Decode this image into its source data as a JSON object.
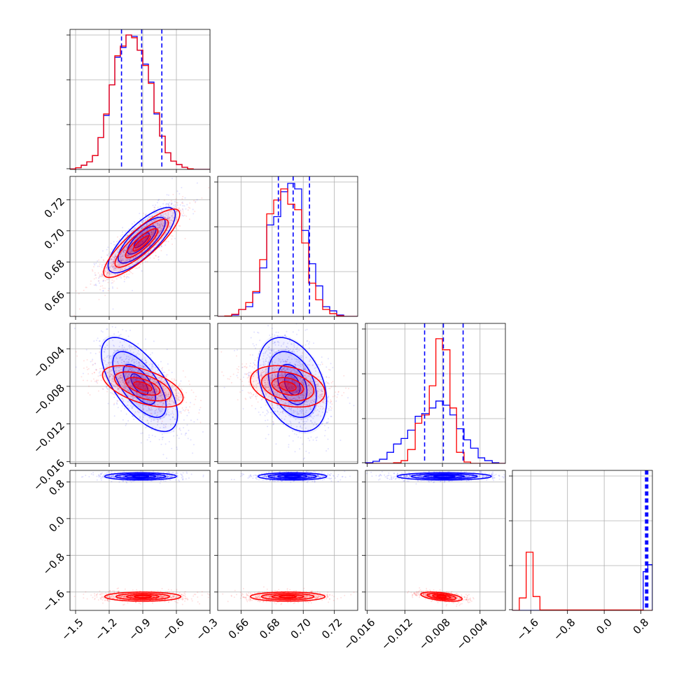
{
  "colors": {
    "series_a": "#0000ff",
    "series_b": "#ff0000",
    "grid": "#b0b0b0",
    "axis": "#000000"
  },
  "chart_data": {
    "type": "corner",
    "parameters": 4,
    "series": [
      {
        "name": "",
        "color": "#0000ff"
      },
      {
        "name": "",
        "color": "#ff0000"
      }
    ],
    "axes": [
      {
        "range": [
          -1.55,
          -0.3
        ],
        "ticks": [
          -1.5,
          -1.2,
          -0.9,
          -0.6,
          -0.3
        ],
        "tick_labels": [
          "−1.5",
          "−1.2",
          "−0.9",
          "−0.6",
          "−0.3"
        ]
      },
      {
        "range": [
          0.645,
          0.735
        ],
        "ticks": [
          0.66,
          0.68,
          0.7,
          0.72
        ],
        "tick_labels": [
          "0.66",
          "0.68",
          "0.70",
          "0.72"
        ]
      },
      {
        "range": [
          -0.0162,
          -0.0013
        ],
        "ticks": [
          -0.016,
          -0.012,
          -0.008,
          -0.004
        ],
        "tick_labels": [
          "−0.016",
          "−0.012",
          "−0.008",
          "−0.004"
        ]
      },
      {
        "range": [
          -2.0,
          1.05
        ],
        "ticks": [
          -1.6,
          -0.8,
          0.0,
          0.8
        ],
        "tick_labels": [
          "−1.6",
          "−0.8",
          "0.0",
          "0.8"
        ]
      }
    ],
    "quantiles": [
      {
        "blue": [
          -1.09,
          -0.91,
          -0.73
        ]
      },
      {
        "blue": [
          0.684,
          0.6935,
          0.704
        ]
      },
      {
        "blue": [
          -0.0099,
          -0.0079,
          -0.0058
        ]
      },
      {
        "blue": [
          0.9,
          0.925,
          0.95
        ]
      }
    ],
    "histograms": [
      {
        "bins": [
          -1.55,
          -1.5,
          -1.45,
          -1.4,
          -1.35,
          -1.3,
          -1.25,
          -1.2,
          -1.15,
          -1.1,
          -1.05,
          -1.0,
          -0.95,
          -0.9,
          -0.85,
          -0.8,
          -0.75,
          -0.7,
          -0.65,
          -0.6,
          -0.55,
          -0.5,
          -0.45,
          -0.4,
          -0.35,
          -0.3
        ],
        "blue": [
          0.003,
          0.012,
          0.03,
          0.055,
          0.1,
          0.23,
          0.39,
          0.61,
          0.81,
          0.88,
          0.97,
          0.96,
          0.86,
          0.76,
          0.63,
          0.4,
          0.24,
          0.12,
          0.06,
          0.035,
          0.015,
          0.004,
          0.0,
          0.0,
          0.0
        ],
        "red": [
          0.003,
          0.012,
          0.03,
          0.055,
          0.1,
          0.23,
          0.4,
          0.61,
          0.82,
          0.89,
          0.97,
          0.95,
          0.86,
          0.75,
          0.62,
          0.41,
          0.24,
          0.12,
          0.06,
          0.035,
          0.015,
          0.004,
          0.0,
          0.0,
          0.0
        ]
      },
      {
        "bins": [
          0.645,
          0.6495,
          0.654,
          0.6585,
          0.663,
          0.6675,
          0.672,
          0.6765,
          0.681,
          0.6855,
          0.69,
          0.6945,
          0.699,
          0.7035,
          0.708,
          0.7125,
          0.717,
          0.7215,
          0.726,
          0.7305,
          0.735
        ],
        "blue": [
          0.0,
          0.0,
          0.01,
          0.05,
          0.07,
          0.17,
          0.35,
          0.66,
          0.72,
          0.9,
          0.96,
          0.92,
          0.62,
          0.38,
          0.22,
          0.07,
          0.04,
          0.01,
          0.0,
          0.0
        ],
        "red": [
          0.0,
          0.003,
          0.015,
          0.05,
          0.1,
          0.18,
          0.41,
          0.74,
          0.84,
          0.92,
          0.81,
          0.77,
          0.53,
          0.24,
          0.12,
          0.05,
          0.02,
          0.005,
          0.0,
          0.0
        ]
      },
      {
        "bins": [
          -0.0162,
          -0.0154,
          -0.0147,
          -0.0139,
          -0.0132,
          -0.0124,
          -0.0117,
          -0.0109,
          -0.0102,
          -0.0094,
          -0.0087,
          -0.008,
          -0.0072,
          -0.0065,
          -0.0057,
          -0.005,
          -0.0042,
          -0.0035,
          -0.0027,
          -0.002,
          -0.0013
        ],
        "blue": [
          0.005,
          0.015,
          0.03,
          0.08,
          0.14,
          0.18,
          0.24,
          0.34,
          0.36,
          0.4,
          0.45,
          0.42,
          0.35,
          0.25,
          0.17,
          0.11,
          0.04,
          0.02,
          0.005,
          0.0
        ],
        "red": [
          0.0,
          0.0,
          0.0,
          0.0,
          0.005,
          0.02,
          0.1,
          0.29,
          0.35,
          0.56,
          0.9,
          0.82,
          0.4,
          0.08,
          0.01,
          0.0,
          0.0,
          0.0,
          0.0,
          0.0
        ]
      },
      {
        "bins": [
          -2.0,
          -1.85,
          -1.7,
          -1.55,
          -1.4,
          -1.25,
          -1.1,
          -0.95,
          -0.8,
          -0.65,
          -0.5,
          -0.35,
          -0.2,
          -0.05,
          0.1,
          0.25,
          0.4,
          0.55,
          0.7,
          0.85,
          0.95,
          1.05
        ],
        "blue": [
          0,
          0,
          0,
          0,
          0,
          0,
          0,
          0,
          0,
          0,
          0,
          0,
          0,
          0,
          0,
          0,
          0,
          0,
          0,
          0.28,
          0.33
        ],
        "red": [
          0.0,
          0.09,
          0.42,
          0.1,
          0.003,
          0.003,
          0.003,
          0.003,
          0.003,
          0.003,
          0.003,
          0.003,
          0.003,
          0.003,
          0.003,
          0.003,
          0.003,
          0.003,
          0.003,
          0.0,
          0.0
        ]
      }
    ],
    "pair_distributions": [
      {
        "row": 1,
        "col": 0,
        "blue": {
          "mean": [
            -0.91,
            0.694
          ],
          "sd": [
            0.15,
            0.0105
          ],
          "corr": 0.78
        },
        "red": {
          "mean": [
            -0.91,
            0.692
          ],
          "sd": [
            0.17,
            0.011
          ],
          "corr": 0.85
        }
      },
      {
        "row": 2,
        "col": 0,
        "blue": {
          "mean": [
            -0.93,
            -0.0078
          ],
          "sd": [
            0.17,
            0.0025
          ],
          "corr": -0.65
        },
        "red": {
          "mean": [
            -0.9,
            -0.008
          ],
          "sd": [
            0.18,
            0.0011
          ],
          "corr": -0.55
        }
      },
      {
        "row": 2,
        "col": 1,
        "blue": {
          "mean": [
            0.693,
            -0.0078
          ],
          "sd": [
            0.011,
            0.0025
          ],
          "corr": -0.35
        },
        "red": {
          "mean": [
            0.69,
            -0.008
          ],
          "sd": [
            0.012,
            0.0011
          ],
          "corr": -0.3
        }
      },
      {
        "row": 3,
        "col": 0,
        "blue": {
          "mean": [
            -0.92,
            0.92
          ],
          "sd": [
            0.16,
            0.04
          ],
          "corr": 0.0
        },
        "red": {
          "mean": [
            -0.9,
            -1.7
          ],
          "sd": [
            0.17,
            0.05
          ],
          "corr": 0.0
        }
      },
      {
        "row": 3,
        "col": 1,
        "blue": {
          "mean": [
            0.693,
            0.92
          ],
          "sd": [
            0.011,
            0.04
          ],
          "corr": 0.0
        },
        "red": {
          "mean": [
            0.69,
            -1.7
          ],
          "sd": [
            0.012,
            0.05
          ],
          "corr": 0.0
        }
      },
      {
        "row": 3,
        "col": 2,
        "blue": {
          "mean": [
            -0.0078,
            0.92
          ],
          "sd": [
            0.0025,
            0.04
          ],
          "corr": 0.0
        },
        "red": {
          "mean": [
            -0.0081,
            -1.7
          ],
          "sd": [
            0.0011,
            0.05
          ],
          "corr": -0.5
        }
      }
    ]
  }
}
